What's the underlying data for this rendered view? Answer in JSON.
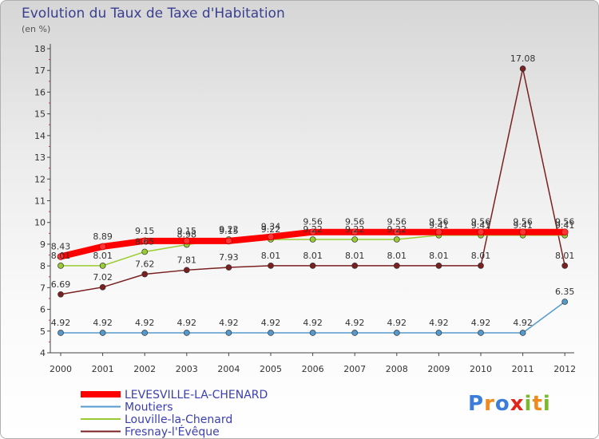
{
  "chart_data": {
    "type": "line",
    "title": "Evolution du Taux de Taxe d'Habitation",
    "unit_label": "(en %)",
    "x": [
      "2000",
      "2001",
      "2002",
      "2003",
      "2004",
      "2005",
      "2006",
      "2007",
      "2008",
      "2009",
      "2010",
      "2011",
      "2012"
    ],
    "ylim": [
      4,
      18
    ],
    "yticks": [
      4,
      5,
      6,
      7,
      8,
      9,
      10,
      11,
      12,
      13,
      14,
      15,
      16,
      17,
      18
    ],
    "grid": false,
    "legend_position": "bottom-left",
    "series": [
      {
        "name": "LEVESVILLE-LA-CHENARD",
        "color": "#ff0000",
        "values": [
          8.43,
          8.89,
          9.15,
          9.15,
          9.15,
          9.34,
          9.56,
          9.56,
          9.56,
          9.56,
          9.56,
          9.56,
          9.56
        ],
        "labels": [
          "8.43",
          "8.89",
          "9.15",
          "9.15",
          "9.15",
          "9.34",
          "9.56",
          "9.56",
          "9.56",
          "9.56",
          "9.56",
          "9.56",
          "9.56"
        ]
      },
      {
        "name": "Moutiers",
        "color": "#5599cc",
        "values": [
          4.92,
          4.92,
          4.92,
          4.92,
          4.92,
          4.92,
          4.92,
          4.92,
          4.92,
          4.92,
          4.92,
          4.92,
          6.35
        ],
        "labels": [
          "4.92",
          "4.92",
          "4.92",
          "4.92",
          "4.92",
          "4.92",
          "4.92",
          "4.92",
          "4.92",
          "4.92",
          "4.92",
          "4.92",
          "6.35"
        ]
      },
      {
        "name": "Louville-la-Chenard",
        "color": "#99cc33",
        "values": [
          8.01,
          8.01,
          8.65,
          8.98,
          9.22,
          9.22,
          9.22,
          9.22,
          9.22,
          9.41,
          9.41,
          9.41,
          9.41
        ],
        "labels": [
          "8.01",
          "8.01",
          "8.65",
          "8.98",
          "9.22",
          "9.22",
          "9.22",
          "9.22",
          "9.22",
          "9.41",
          "9.41",
          "9.41",
          "9.41"
        ]
      },
      {
        "name": "Fresnay-l'Évêque",
        "color": "#7a2020",
        "values": [
          6.69,
          7.02,
          7.62,
          7.81,
          7.93,
          8.01,
          8.01,
          8.01,
          8.01,
          8.01,
          8.01,
          17.08,
          8.01
        ],
        "labels": [
          "6.69",
          "7.02",
          "7.62",
          "7.81",
          "7.93",
          "8.01",
          "8.01",
          "8.01",
          "8.01",
          "8.01",
          "8.01",
          "17.08",
          "8.01"
        ]
      }
    ]
  },
  "logo": {
    "text": "Proxiti",
    "letters": [
      "P",
      "r",
      "o",
      "x",
      "i",
      "t",
      "i"
    ],
    "colors": [
      "#3b7dd8",
      "#f08a1c",
      "#3b7dd8",
      "#e0261b",
      "#7ab82e",
      "#f08a1c",
      "#7ab82e"
    ]
  }
}
